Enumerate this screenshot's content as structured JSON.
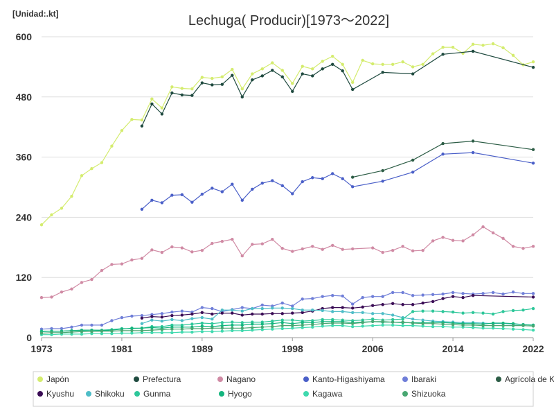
{
  "chart_data": {
    "type": "line",
    "title": "Lechuga( Producir)[1973～2022]",
    "unit_label": "[Unidad:.kt]",
    "xlabel": "",
    "ylabel": "",
    "xlim": [
      1973,
      2022
    ],
    "ylim": [
      0,
      600
    ],
    "x_ticks": [
      1973,
      1981,
      1989,
      1998,
      2006,
      2014,
      2022
    ],
    "y_ticks": [
      0,
      120,
      240,
      360,
      480,
      600
    ],
    "grid": "horizontal",
    "legend_position": "bottom",
    "series": [
      {
        "name": "Japón",
        "color": "#d4ec6e",
        "x": [
          1973,
          1974,
          1975,
          1976,
          1977,
          1978,
          1979,
          1980,
          1981,
          1982,
          1983,
          1984,
          1985,
          1986,
          1987,
          1988,
          1989,
          1990,
          1991,
          1992,
          1993,
          1994,
          1995,
          1996,
          1997,
          1998,
          1999,
          2000,
          2001,
          2002,
          2003,
          2004,
          2005,
          2006,
          2007,
          2008,
          2009,
          2010,
          2011,
          2012,
          2013,
          2014,
          2015,
          2016,
          2017,
          2018,
          2019,
          2020,
          2021,
          2022
        ],
        "y": [
          225,
          245,
          258,
          282,
          323,
          337,
          349,
          382,
          413,
          435,
          434,
          476,
          458,
          500,
          497,
          496,
          519,
          517,
          520,
          535,
          496,
          526,
          536,
          548,
          533,
          507,
          541,
          536,
          551,
          561,
          545,
          509,
          553,
          546,
          545,
          545,
          550,
          540,
          545,
          566,
          579,
          579,
          567,
          585,
          583,
          586,
          578,
          563,
          544,
          550
        ]
      },
      {
        "name": "Prefectura",
        "color": "#1f4a3f",
        "x": [
          1983,
          1984,
          1985,
          1986,
          1987,
          1988,
          1989,
          1990,
          1991,
          1992,
          1993,
          1994,
          1995,
          1996,
          1997,
          1998,
          1999,
          2000,
          2001,
          2002,
          2003,
          2004,
          2007,
          2010,
          2013,
          2016,
          2022
        ],
        "y": [
          422,
          466,
          446,
          488,
          484,
          483,
          508,
          504,
          505,
          523,
          480,
          514,
          522,
          533,
          520,
          491,
          526,
          522,
          536,
          545,
          532,
          495,
          529,
          526,
          565,
          571,
          539
        ]
      },
      {
        "name": "Nagano",
        "color": "#d08aa4",
        "x": [
          1973,
          1974,
          1975,
          1976,
          1977,
          1978,
          1979,
          1980,
          1981,
          1982,
          1983,
          1984,
          1985,
          1986,
          1987,
          1988,
          1989,
          1990,
          1991,
          1992,
          1993,
          1994,
          1995,
          1996,
          1997,
          1998,
          1999,
          2000,
          2001,
          2002,
          2003,
          2004,
          2006,
          2007,
          2008,
          2009,
          2010,
          2011,
          2012,
          2013,
          2014,
          2015,
          2016,
          2017,
          2018,
          2019,
          2020,
          2021,
          2022
        ],
        "y": [
          80,
          81,
          91,
          97,
          110,
          116,
          134,
          146,
          147,
          155,
          158,
          175,
          170,
          181,
          179,
          171,
          174,
          188,
          192,
          196,
          163,
          186,
          187,
          196,
          178,
          172,
          177,
          182,
          176,
          184,
          176,
          177,
          179,
          170,
          174,
          182,
          173,
          174,
          193,
          200,
          194,
          193,
          205,
          221,
          209,
          198,
          182,
          178,
          182
        ]
      },
      {
        "name": "Kanto-Higashiyama",
        "color": "#4a5fc8",
        "x": [
          1983,
          1984,
          1985,
          1986,
          1987,
          1988,
          1989,
          1990,
          1991,
          1992,
          1993,
          1994,
          1995,
          1996,
          1997,
          1998,
          1999,
          2000,
          2001,
          2002,
          2003,
          2004,
          2007,
          2010,
          2013,
          2016,
          2022
        ],
        "y": [
          256,
          274,
          269,
          284,
          285,
          270,
          286,
          298,
          291,
          306,
          274,
          296,
          308,
          313,
          303,
          287,
          311,
          319,
          317,
          327,
          317,
          301,
          312,
          330,
          366,
          369,
          348
        ]
      },
      {
        "name": "Ibaraki",
        "color": "#6f7ed8",
        "x": [
          1973,
          1974,
          1975,
          1976,
          1977,
          1978,
          1979,
          1980,
          1981,
          1982,
          1983,
          1984,
          1985,
          1986,
          1987,
          1988,
          1989,
          1990,
          1991,
          1992,
          1993,
          1994,
          1995,
          1996,
          1997,
          1998,
          1999,
          2000,
          2001,
          2002,
          2003,
          2004,
          2005,
          2006,
          2007,
          2008,
          2009,
          2010,
          2011,
          2012,
          2013,
          2014,
          2015,
          2016,
          2017,
          2018,
          2019,
          2020,
          2021,
          2022
        ],
        "y": [
          17,
          18,
          18,
          21,
          25,
          25,
          25,
          34,
          40,
          43,
          44,
          46,
          48,
          51,
          53,
          51,
          60,
          58,
          52,
          56,
          60,
          58,
          65,
          63,
          69,
          63,
          77,
          78,
          82,
          84,
          83,
          67,
          80,
          82,
          82,
          90,
          90,
          84,
          85,
          86,
          87,
          90,
          88,
          87,
          88,
          90,
          87,
          91,
          88,
          88
        ]
      },
      {
        "name": "Agrícola de Kanto",
        "color": "#2d5d46",
        "x": [
          2004,
          2007,
          2010,
          2013,
          2016,
          2022
        ],
        "y": [
          320,
          333,
          354,
          387,
          392,
          375
        ]
      },
      {
        "name": "Kyushu",
        "color": "#3a0c55",
        "x": [
          1983,
          1984,
          1985,
          1986,
          1987,
          1988,
          1989,
          1990,
          1991,
          1992,
          1993,
          1994,
          1995,
          1996,
          1997,
          1998,
          1999,
          2000,
          2001,
          2002,
          2003,
          2004,
          2005,
          2006,
          2007,
          2008,
          2009,
          2010,
          2011,
          2012,
          2013,
          2014,
          2015,
          2016,
          2022
        ],
        "y": [
          39,
          42,
          41,
          44,
          45,
          47,
          50,
          47,
          49,
          49,
          45,
          47,
          47,
          48,
          48,
          49,
          50,
          53,
          58,
          60,
          60,
          59,
          61,
          64,
          66,
          68,
          66,
          66,
          69,
          72,
          78,
          82,
          80,
          84,
          81
        ]
      },
      {
        "name": "Shikoku",
        "color": "#4ebdc7",
        "x": [
          1983,
          1984,
          1985,
          1986,
          1987,
          1988,
          1989,
          1990,
          1991,
          1992,
          1993,
          1994,
          1995,
          1996,
          1997,
          1998,
          1999,
          2000,
          2001,
          2002,
          2003,
          2004,
          2005,
          2006,
          2007,
          2008,
          2009,
          2010,
          2011,
          2012,
          2013,
          2014,
          2015,
          2016,
          2017,
          2018,
          2019,
          2020,
          2021,
          2022
        ],
        "y": [
          28,
          35,
          33,
          36,
          34,
          38,
          40,
          37,
          55,
          55,
          53,
          58,
          58,
          59,
          59,
          58,
          55,
          55,
          54,
          52,
          52,
          50,
          50,
          48,
          48,
          45,
          40,
          37,
          35,
          33,
          32,
          31,
          30,
          30,
          29,
          28,
          28,
          27,
          26,
          25
        ]
      },
      {
        "name": "Gunma",
        "color": "#2ec79a",
        "x": [
          1973,
          1974,
          1975,
          1976,
          1977,
          1978,
          1979,
          1980,
          1981,
          1982,
          1983,
          1984,
          1985,
          1986,
          1987,
          1988,
          1989,
          1990,
          1991,
          1992,
          1993,
          1994,
          1995,
          1996,
          1997,
          1998,
          1999,
          2000,
          2001,
          2002,
          2003,
          2004,
          2005,
          2006,
          2007,
          2008,
          2009,
          2010,
          2011,
          2012,
          2013,
          2014,
          2015,
          2016,
          2017,
          2018,
          2019,
          2020,
          2021,
          2022
        ],
        "y": [
          12,
          13,
          13,
          14,
          14,
          15,
          15,
          16,
          18,
          18,
          19,
          22,
          22,
          25,
          25,
          27,
          29,
          28,
          30,
          31,
          30,
          31,
          31,
          33,
          35,
          35,
          33,
          34,
          36,
          36,
          35,
          34,
          35,
          37,
          35,
          36,
          37,
          52,
          53,
          53,
          52,
          51,
          49,
          50,
          49,
          47,
          52,
          54,
          55,
          58
        ]
      },
      {
        "name": "Hyogo",
        "color": "#14b57e",
        "x": [
          1973,
          1974,
          1975,
          1976,
          1977,
          1978,
          1979,
          1980,
          1981,
          1982,
          1983,
          1984,
          1985,
          1986,
          1987,
          1988,
          1989,
          1990,
          1991,
          1992,
          1993,
          1994,
          1995,
          1996,
          1997,
          1998,
          1999,
          2000,
          2001,
          2002,
          2003,
          2004,
          2005,
          2006,
          2007,
          2008,
          2009,
          2010,
          2011,
          2012,
          2013,
          2014,
          2015,
          2016,
          2017,
          2018,
          2019,
          2020,
          2021,
          2022
        ],
        "y": [
          13,
          13,
          13,
          14,
          15,
          15,
          14,
          15,
          17,
          19,
          19,
          20,
          19,
          21,
          21,
          21,
          23,
          22,
          24,
          25,
          25,
          27,
          27,
          28,
          30,
          28,
          30,
          30,
          32,
          32,
          32,
          30,
          31,
          32,
          31,
          31,
          30,
          30,
          30,
          30,
          30,
          29,
          28,
          28,
          27,
          29,
          29,
          28,
          26,
          25
        ]
      },
      {
        "name": "Kagawa",
        "color": "#3fd9ae",
        "x": [
          1973,
          1974,
          1975,
          1976,
          1977,
          1978,
          1979,
          1980,
          1981,
          1982,
          1983,
          1984,
          1985,
          1986,
          1987,
          1988,
          1989,
          1990,
          1991,
          1992,
          1993,
          1994,
          1995,
          1996,
          1997,
          1998,
          1999,
          2000,
          2001,
          2002,
          2003,
          2004,
          2005,
          2006,
          2007,
          2008,
          2009,
          2010,
          2011,
          2012,
          2013,
          2014,
          2015,
          2016,
          2017,
          2018,
          2019,
          2020,
          2021,
          2022
        ],
        "y": [
          6,
          6,
          7,
          7,
          7,
          8,
          8,
          8,
          9,
          9,
          10,
          10,
          10,
          10,
          11,
          11,
          12,
          12,
          13,
          14,
          14,
          15,
          16,
          17,
          18,
          19,
          20,
          21,
          23,
          24,
          24,
          22,
          23,
          24,
          25,
          25,
          24,
          24,
          23,
          22,
          22,
          21,
          21,
          20,
          19,
          19,
          18,
          17,
          16,
          15
        ]
      },
      {
        "name": "Shizuoka",
        "color": "#49a772",
        "x": [
          1973,
          1974,
          1975,
          1976,
          1977,
          1978,
          1979,
          1980,
          1981,
          1982,
          1983,
          1984,
          1985,
          1986,
          1987,
          1988,
          1989,
          1990,
          1991,
          1992,
          1993,
          1994,
          1995,
          1996,
          1997,
          1998,
          1999,
          2000,
          2001,
          2002,
          2003,
          2004,
          2005,
          2006,
          2007,
          2008,
          2009,
          2010,
          2011,
          2012,
          2013,
          2014,
          2015,
          2016,
          2017,
          2018,
          2019,
          2020,
          2021,
          2022
        ],
        "y": [
          9,
          10,
          10,
          11,
          12,
          12,
          13,
          13,
          14,
          14,
          14,
          15,
          16,
          17,
          17,
          18,
          18,
          19,
          19,
          19,
          19,
          20,
          21,
          22,
          24,
          24,
          25,
          26,
          28,
          29,
          29,
          28,
          30,
          32,
          32,
          31,
          31,
          29,
          28,
          28,
          27,
          26,
          25,
          25,
          24,
          24,
          24,
          24,
          24,
          23
        ]
      }
    ]
  }
}
